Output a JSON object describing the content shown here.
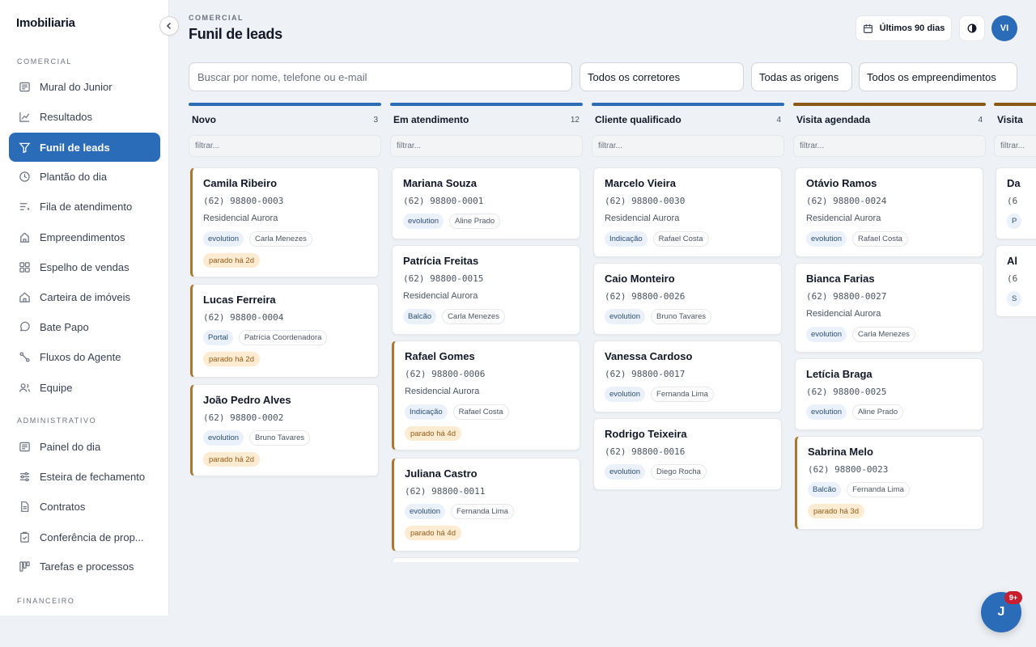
{
  "app": {
    "brand": "Imobiliaria"
  },
  "sidebar": {
    "sections": [
      {
        "title": "COMERCIAL"
      },
      {
        "title": "ADMINISTRATIVO"
      },
      {
        "title": "FINANCEIRO"
      }
    ],
    "items": [
      {
        "label": "Mural do Junior",
        "icon": "newspaper-icon"
      },
      {
        "label": "Resultados",
        "icon": "chart-line-icon"
      },
      {
        "label": "Funil de leads",
        "icon": "funnel-icon",
        "active": true
      },
      {
        "label": "Plantão do dia",
        "icon": "clock-icon"
      },
      {
        "label": "Fila de atendimento",
        "icon": "queue-list-icon"
      },
      {
        "label": "Empreendimentos",
        "icon": "building-icon"
      },
      {
        "label": "Espelho de vendas",
        "icon": "grid-icon"
      },
      {
        "label": "Carteira de imóveis",
        "icon": "house-icon"
      },
      {
        "label": "Bate Papo",
        "icon": "chat-bubble-icon"
      },
      {
        "label": "Fluxos do Agente",
        "icon": "workflow-icon"
      },
      {
        "label": "Equipe",
        "icon": "users-icon"
      },
      {
        "label": "Painel do dia",
        "icon": "newspaper-icon"
      },
      {
        "label": "Esteira de fechamento",
        "icon": "sliders-icon"
      },
      {
        "label": "Contratos",
        "icon": "document-icon"
      },
      {
        "label": "Conferência de prop...",
        "icon": "clipboard-check-icon"
      },
      {
        "label": "Tarefas e processos",
        "icon": "kanban-icon"
      }
    ]
  },
  "header": {
    "eyebrow": "COMERCIAL",
    "title": "Funil de leads",
    "period_label": "Últimos 90 dias",
    "avatar_initials": "VI"
  },
  "filters": {
    "search_placeholder": "Buscar por nome, telefone ou e-mail",
    "brokers": "Todos os corretores",
    "origins": "Todas as origens",
    "projects": "Todos os empreendimentos",
    "column_filter_placeholder": "filtrar..."
  },
  "colors": {
    "accent": "#2b6cb8",
    "column_blue": "#2b6cb8",
    "column_gold": "#8a5a14",
    "stale_border": "#a9782e"
  },
  "columns": [
    {
      "title": "Novo",
      "count": "3",
      "bar_color": "#2b6cb8",
      "cards": [
        {
          "name": "Camila Ribeiro",
          "phone": "(62) 98800-0003",
          "project": "Residencial Aurora",
          "source": "evolution",
          "broker": "Carla Menezes",
          "stale": "parado há 2d"
        },
        {
          "name": "Lucas Ferreira",
          "phone": "(62) 98800-0004",
          "project": "",
          "source": "Portal",
          "broker": "Patrícia Coordenadora",
          "stale": "parado há 2d"
        },
        {
          "name": "João Pedro Alves",
          "phone": "(62) 98800-0002",
          "project": "",
          "source": "evolution",
          "broker": "Bruno Tavares",
          "stale": "parado há 2d"
        }
      ]
    },
    {
      "title": "Em atendimento",
      "count": "12",
      "bar_color": "#2b6cb8",
      "cards": [
        {
          "name": "Mariana Souza",
          "phone": "(62) 98800-0001",
          "project": "",
          "source": "evolution",
          "broker": "Aline Prado",
          "stale": ""
        },
        {
          "name": "Patrícia Freitas",
          "phone": "(62) 98800-0015",
          "project": "Residencial Aurora",
          "source": "Balcão",
          "broker": "Carla Menezes",
          "stale": ""
        },
        {
          "name": "Rafael Gomes",
          "phone": "(62) 98800-0006",
          "project": "Residencial Aurora",
          "source": "Indicação",
          "broker": "Rafael Costa",
          "stale": "parado há 4d"
        },
        {
          "name": "Juliana Castro",
          "phone": "(62) 98800-0011",
          "project": "",
          "source": "evolution",
          "broker": "Fernanda Lima",
          "stale": "parado há 4d"
        },
        {
          "name": "",
          "phone": "",
          "project": "",
          "source": "",
          "broker": "",
          "stale": ""
        }
      ]
    },
    {
      "title": "Cliente qualificado",
      "count": "4",
      "bar_color": "#2b6cb8",
      "cards": [
        {
          "name": "Marcelo Vieira",
          "phone": "(62) 98800-0030",
          "project": "Residencial Aurora",
          "source": "Indicação",
          "broker": "Rafael Costa",
          "stale": ""
        },
        {
          "name": "Caio Monteiro",
          "phone": "(62) 98800-0026",
          "project": "",
          "source": "evolution",
          "broker": "Bruno Tavares",
          "stale": ""
        },
        {
          "name": "Vanessa Cardoso",
          "phone": "(62) 98800-0017",
          "project": "",
          "source": "evolution",
          "broker": "Fernanda Lima",
          "stale": ""
        },
        {
          "name": "Rodrigo Teixeira",
          "phone": "(62) 98800-0016",
          "project": "",
          "source": "evolution",
          "broker": "Diego Rocha",
          "stale": ""
        }
      ]
    },
    {
      "title": "Visita agendada",
      "count": "4",
      "bar_color": "#8a5a14",
      "cards": [
        {
          "name": "Otávio Ramos",
          "phone": "(62) 98800-0024",
          "project": "Residencial Aurora",
          "source": "evolution",
          "broker": "Rafael Costa",
          "stale": ""
        },
        {
          "name": "Bianca Farias",
          "phone": "(62) 98800-0027",
          "project": "Residencial Aurora",
          "source": "evolution",
          "broker": "Carla Menezes",
          "stale": ""
        },
        {
          "name": "Letícia Braga",
          "phone": "(62) 98800-0025",
          "project": "",
          "source": "evolution",
          "broker": "Aline Prado",
          "stale": ""
        },
        {
          "name": "Sabrina Melo",
          "phone": "(62) 98800-0023",
          "project": "",
          "source": "Balcão",
          "broker": "Fernanda Lima",
          "stale": "parado há 3d"
        }
      ]
    },
    {
      "title": "Visita",
      "count": "",
      "bar_color": "#8a5a14",
      "cards": [
        {
          "name": "Da",
          "phone": "(6",
          "project": "",
          "source": "P",
          "broker": "",
          "stale": ""
        },
        {
          "name": "Al",
          "phone": "(6",
          "project": "",
          "source": "S",
          "broker": "",
          "stale": ""
        }
      ]
    }
  ],
  "chat": {
    "initial": "J",
    "badge": "9+"
  }
}
